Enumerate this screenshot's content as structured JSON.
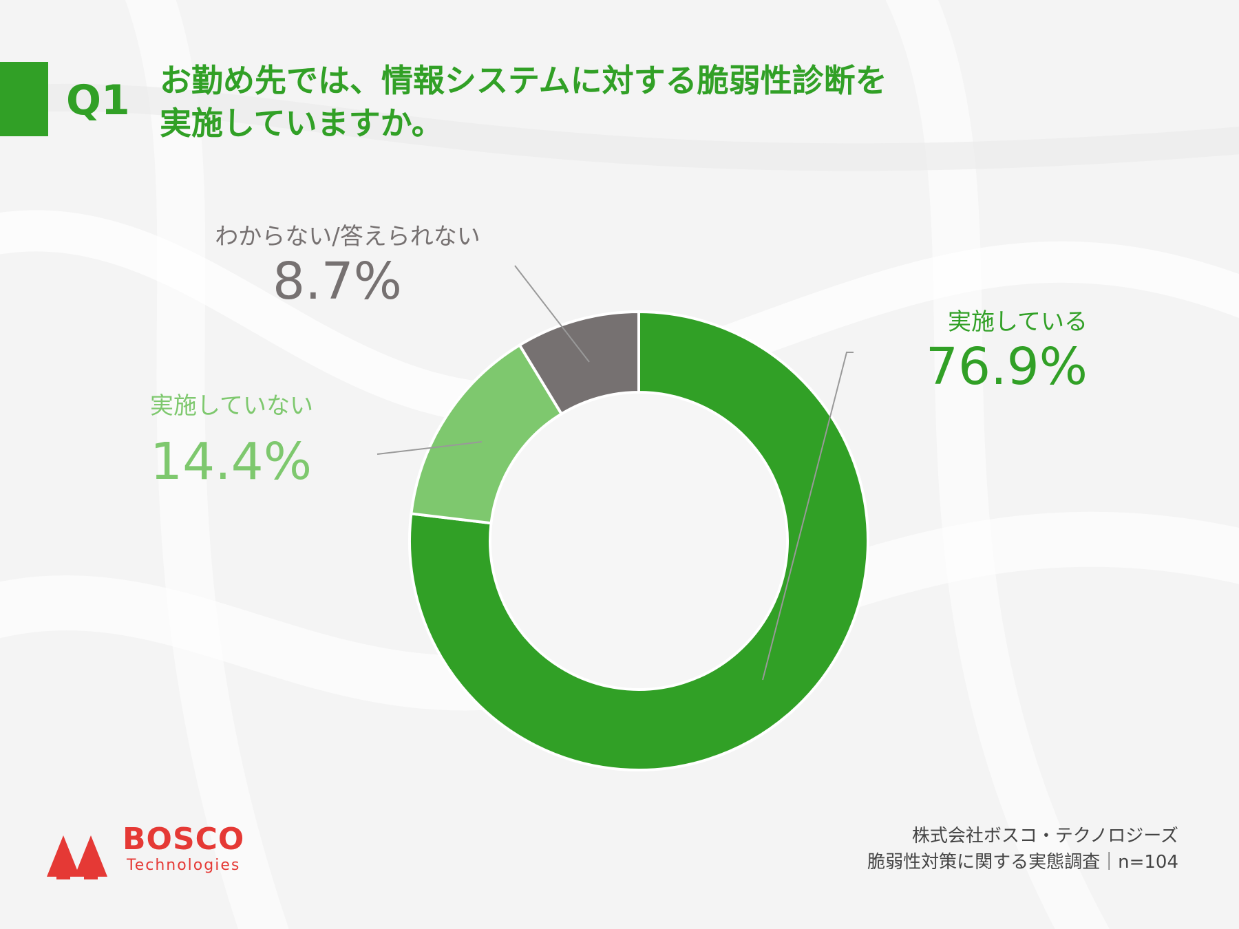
{
  "question": {
    "number": "Q1",
    "line1": "お勤め先では、情報システムに対する脆弱性診断を",
    "line2": "実施していますか。"
  },
  "colors": {
    "accent": "#31a026",
    "light_green": "#7ec86e",
    "gray": "#767171",
    "logo_red": "#e53935"
  },
  "chart_data": {
    "type": "pie",
    "donut": true,
    "categories": [
      "実施している",
      "実施していない",
      "わからない/答えられない"
    ],
    "values": [
      76.9,
      14.4,
      8.7
    ],
    "labels": [
      "76.9%",
      "14.4%",
      "8.7%"
    ],
    "colors": [
      "#31a026",
      "#7ec86e",
      "#767171"
    ]
  },
  "footer": {
    "line1": "株式会社ボスコ・テクノロジーズ",
    "line2": "脆弱性対策に関する実態調査｜n=104"
  },
  "logo": {
    "name": "BOSCO",
    "sub": "Technologies"
  }
}
